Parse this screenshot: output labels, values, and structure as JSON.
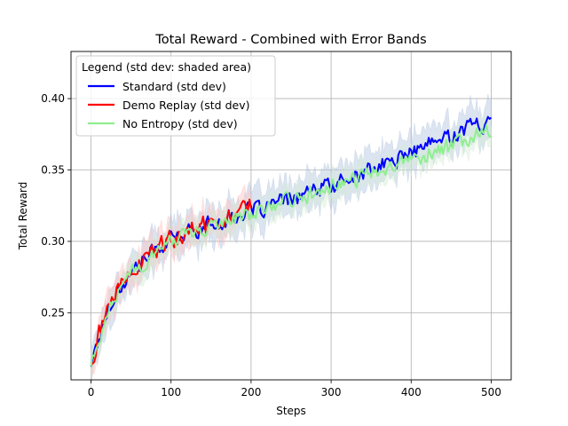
{
  "chart_data": {
    "type": "line",
    "title": "Total Reward - Combined with Error Bands",
    "xlabel": "Steps",
    "ylabel": "Total Reward",
    "xlim": [
      -25,
      525
    ],
    "ylim": [
      0.203,
      0.433
    ],
    "x_ticks": [
      0,
      100,
      200,
      300,
      400,
      500
    ],
    "y_ticks": [
      0.25,
      0.3,
      0.35,
      0.4
    ],
    "x_tick_labels": [
      "0",
      "100",
      "200",
      "300",
      "400",
      "500"
    ],
    "y_tick_labels": [
      "0.25",
      "0.30",
      "0.35",
      "0.40"
    ],
    "grid": true,
    "legend": {
      "title": "Legend (std dev: shaded area)",
      "placement": "top-left"
    },
    "series": [
      {
        "name": "Standard (std dev)",
        "color": "#0000ff",
        "band_color": "#b0c4de",
        "x_range": [
          0,
          500
        ],
        "anchors": [
          [
            0,
            0.215
          ],
          [
            10,
            0.232
          ],
          [
            25,
            0.258
          ],
          [
            50,
            0.278
          ],
          [
            75,
            0.292
          ],
          [
            100,
            0.301
          ],
          [
            125,
            0.307
          ],
          [
            150,
            0.312
          ],
          [
            175,
            0.317
          ],
          [
            200,
            0.321
          ],
          [
            225,
            0.325
          ],
          [
            250,
            0.33
          ],
          [
            275,
            0.334
          ],
          [
            300,
            0.339
          ],
          [
            325,
            0.344
          ],
          [
            350,
            0.35
          ],
          [
            375,
            0.356
          ],
          [
            400,
            0.362
          ],
          [
            425,
            0.368
          ],
          [
            450,
            0.374
          ],
          [
            475,
            0.381
          ],
          [
            500,
            0.383
          ]
        ],
        "noise": 0.0055,
        "std": 0.012
      },
      {
        "name": "Demo Replay (std dev)",
        "color": "#ff0000",
        "band_color": "#ffc0c0",
        "x_range": [
          0,
          200
        ],
        "anchors": [
          [
            0,
            0.216
          ],
          [
            10,
            0.235
          ],
          [
            25,
            0.258
          ],
          [
            50,
            0.277
          ],
          [
            75,
            0.292
          ],
          [
            100,
            0.301
          ],
          [
            125,
            0.307
          ],
          [
            150,
            0.314
          ],
          [
            175,
            0.32
          ],
          [
            200,
            0.326
          ]
        ],
        "noise": 0.0065,
        "std": 0.01
      },
      {
        "name": "No Entropy (std dev)",
        "color": "#90ee90",
        "band_color": "#d4ecd4",
        "x_range": [
          0,
          500
        ],
        "anchors": [
          [
            0,
            0.214
          ],
          [
            10,
            0.23
          ],
          [
            25,
            0.257
          ],
          [
            50,
            0.277
          ],
          [
            75,
            0.291
          ],
          [
            100,
            0.3
          ],
          [
            125,
            0.306
          ],
          [
            150,
            0.311
          ],
          [
            175,
            0.316
          ],
          [
            200,
            0.32
          ],
          [
            225,
            0.324
          ],
          [
            250,
            0.329
          ],
          [
            275,
            0.333
          ],
          [
            300,
            0.338
          ],
          [
            325,
            0.342
          ],
          [
            350,
            0.347
          ],
          [
            375,
            0.352
          ],
          [
            400,
            0.357
          ],
          [
            425,
            0.362
          ],
          [
            450,
            0.367
          ],
          [
            475,
            0.373
          ],
          [
            500,
            0.379
          ]
        ],
        "noise": 0.005,
        "std": 0.008
      }
    ]
  }
}
